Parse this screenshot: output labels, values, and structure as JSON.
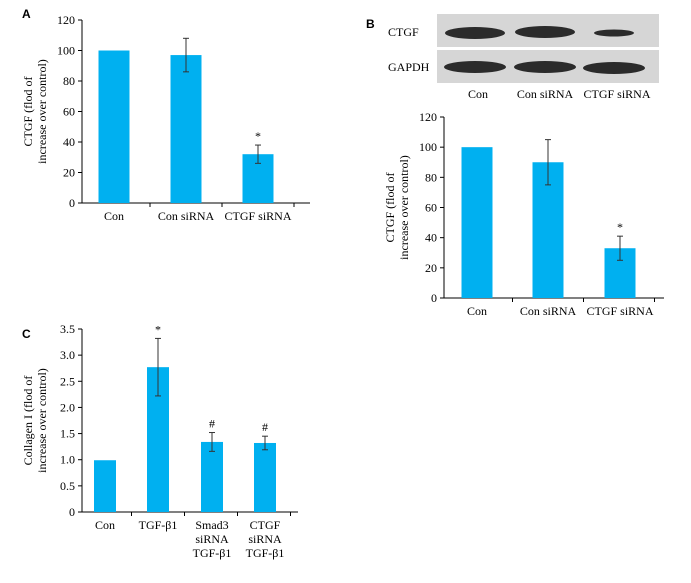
{
  "figure": {
    "panels": [
      "A",
      "B",
      "C"
    ]
  },
  "blot": {
    "row_labels": [
      "CTGF",
      "GAPDH"
    ],
    "lane_labels": [
      "Con",
      "Con siRNA",
      "CTGF siRNA"
    ],
    "colors": {
      "background": "#d6d6d6",
      "band": "#2b2b2b"
    }
  },
  "colors": {
    "bar": "#00b0f0",
    "axis": "#000000"
  },
  "chart_data": [
    {
      "id": "A",
      "type": "bar",
      "categories": [
        "Con",
        "Con siRNA",
        "CTGF siRNA"
      ],
      "values": [
        100,
        97,
        32
      ],
      "errors": [
        0,
        11,
        6
      ],
      "annotations": [
        "",
        "",
        "*"
      ],
      "ylabel_lines": [
        "CTGF (flod of",
        "increase over control)"
      ],
      "ylim": [
        0,
        120
      ],
      "yticks": [
        "0",
        "20",
        "40",
        "60",
        "80",
        "100",
        "120"
      ],
      "grid": false
    },
    {
      "id": "B",
      "type": "bar",
      "categories": [
        "Con",
        "Con siRNA",
        "CTGF siRNA"
      ],
      "values": [
        100,
        90,
        33
      ],
      "errors": [
        0,
        15,
        8
      ],
      "annotations": [
        "",
        "",
        "*"
      ],
      "ylabel_lines": [
        "CTGF (flod of",
        "increase over control)"
      ],
      "ylim": [
        0,
        120
      ],
      "yticks": [
        "0",
        "20",
        "40",
        "60",
        "80",
        "100",
        "120"
      ],
      "grid": false
    },
    {
      "id": "C",
      "type": "bar",
      "categories": [
        "Con",
        "TGF-β1",
        "Smad3\nsiRNA\nTGF-β1",
        "CTGF\nsiRNA\nTGF-β1"
      ],
      "values": [
        0.99,
        2.77,
        1.34,
        1.32
      ],
      "errors": [
        0,
        0.55,
        0.18,
        0.13
      ],
      "annotations": [
        "",
        "*",
        "#",
        "#"
      ],
      "ylabel_lines": [
        "Collagen I (flod of",
        "increase over control)"
      ],
      "ylim": [
        0,
        3.5
      ],
      "yticks": [
        "0",
        "0.5",
        "1.0",
        "1.5",
        "2.0",
        "2.5",
        "3.0",
        "3.5"
      ],
      "grid": false
    }
  ]
}
